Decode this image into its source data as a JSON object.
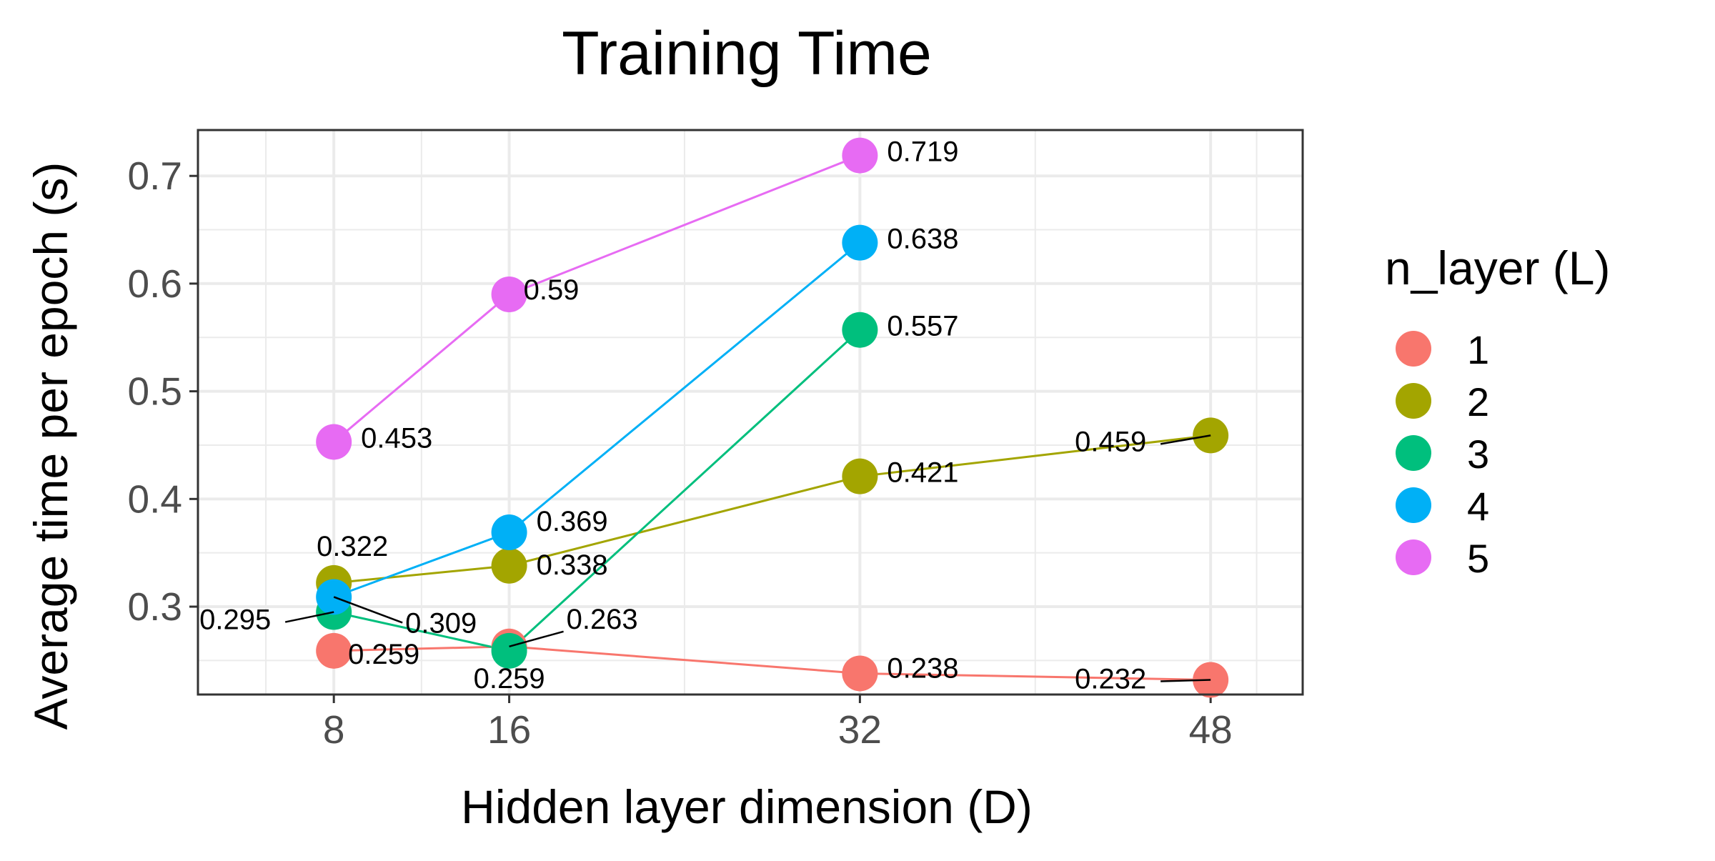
{
  "chart_data": {
    "type": "line",
    "title": "Training Time",
    "xlabel": "Hidden layer dimension (D)",
    "ylabel": "Average time per epoch (s)",
    "x_ticks": [
      8,
      16,
      32,
      48
    ],
    "y_ticks": [
      0.3,
      0.4,
      0.5,
      0.6,
      0.7
    ],
    "xlim": [
      1.8,
      52.2
    ],
    "ylim": [
      0.2184,
      0.7426
    ],
    "grid": true,
    "legend": {
      "title": "n_layer (L)",
      "position": "right"
    },
    "series": [
      {
        "name": "1",
        "color": "#F8766D",
        "x": [
          8,
          16,
          32,
          48
        ],
        "values": [
          0.259,
          0.263,
          0.238,
          0.232
        ],
        "labels": [
          "0.259",
          "0.263",
          "0.238",
          "0.232"
        ]
      },
      {
        "name": "2",
        "color": "#A3A500",
        "x": [
          8,
          16,
          32,
          48
        ],
        "values": [
          0.322,
          0.338,
          0.421,
          0.459
        ],
        "labels": [
          "0.322",
          "0.338",
          "0.421",
          "0.459"
        ]
      },
      {
        "name": "3",
        "color": "#00BF7D",
        "x": [
          8,
          16,
          32
        ],
        "values": [
          0.295,
          0.259,
          0.557
        ],
        "labels": [
          "0.295",
          "0.259",
          "0.557"
        ]
      },
      {
        "name": "4",
        "color": "#00B0F6",
        "x": [
          8,
          16,
          32
        ],
        "values": [
          0.309,
          0.369,
          0.638
        ],
        "labels": [
          "0.309",
          "0.369",
          "0.638"
        ]
      },
      {
        "name": "5",
        "color": "#E76BF3",
        "x": [
          8,
          16,
          32
        ],
        "values": [
          0.453,
          0.59,
          0.719
        ],
        "labels": [
          "0.453",
          "0.59",
          "0.719"
        ]
      }
    ]
  }
}
